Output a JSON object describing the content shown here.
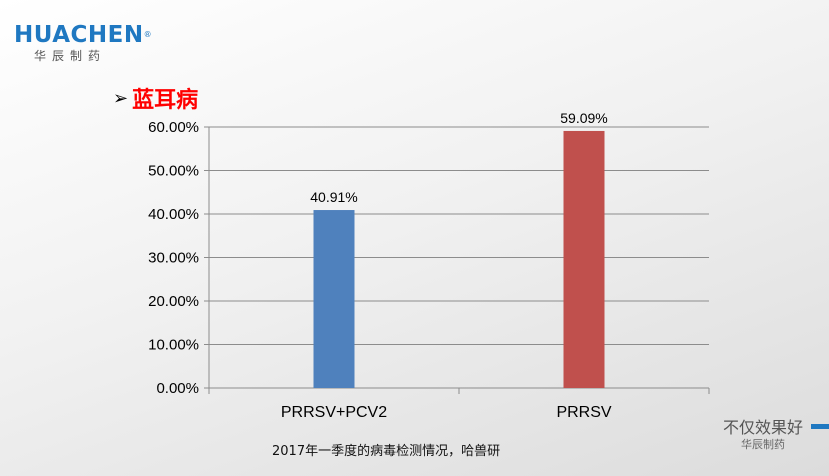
{
  "logo": {
    "wordmark": "HUACHEN",
    "registered": "®",
    "chinese": "华辰制药"
  },
  "heading": {
    "bullet": "➢",
    "text": "蓝耳病"
  },
  "caption": "2017年一季度的病毒检测情况，哈兽研",
  "tagline": {
    "main": "不仅效果好",
    "sub": "华辰制药"
  },
  "colors": {
    "accent": "#1f78c1",
    "heading": "#ff0000"
  },
  "chart_data": {
    "type": "bar",
    "categories": [
      "PRRSV+PCV2",
      "PRRSV"
    ],
    "values": [
      40.91,
      59.09
    ],
    "value_labels": [
      "40.91%",
      "59.09%"
    ],
    "bar_colors": [
      "#4f81bd",
      "#c0504d"
    ],
    "ylim": [
      0,
      60
    ],
    "yticks": [
      0,
      10,
      20,
      30,
      40,
      50,
      60
    ],
    "ytick_labels": [
      "0.00%",
      "10.00%",
      "20.00%",
      "30.00%",
      "40.00%",
      "50.00%",
      "60.00%"
    ],
    "grid": true,
    "legend": "none",
    "title": "",
    "xlabel": "",
    "ylabel": ""
  }
}
